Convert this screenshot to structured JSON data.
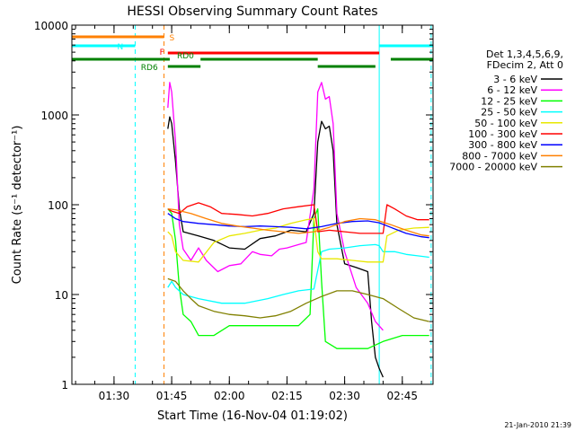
{
  "chart_data": {
    "type": "line",
    "title": "HESSI Observing Summary Count Rates",
    "xlabel": "Start Time (16-Nov-04 01:19:02)",
    "ylabel": "Count Rate (s⁻¹ detector⁻¹)",
    "footer_date": "21-Jan-2010 21:39",
    "y_scale": "log",
    "ylim": [
      1,
      10000
    ],
    "xlim": [
      "01:19:02",
      "02:53:00"
    ],
    "x_ticks": [
      "01:30",
      "01:45",
      "02:00",
      "02:15",
      "02:30",
      "02:45"
    ],
    "y_ticks": [
      "1",
      "10",
      "100",
      "1000",
      "10000"
    ],
    "legend": {
      "placement": "right",
      "header": [
        "Det 1,3,4,5,6,9,",
        "FDecim 2, Att 0"
      ],
      "entries": [
        {
          "label": "3 - 6 keV",
          "color": "#000000"
        },
        {
          "label": "6 - 12 keV",
          "color": "#ff00ff"
        },
        {
          "label": "12 - 25 keV",
          "color": "#00ff00"
        },
        {
          "label": "25 - 50 keV",
          "color": "#00ffff"
        },
        {
          "label": "50 - 100 keV",
          "color": "#e8e800"
        },
        {
          "label": "100 - 300 keV",
          "color": "#ff0000"
        },
        {
          "label": "300 - 800 keV",
          "color": "#0000ff"
        },
        {
          "label": "800 - 7000 keV",
          "color": "#ff8000"
        },
        {
          "label": "7000 - 20000 keV",
          "color": "#808000"
        }
      ]
    },
    "flag_bars": [
      {
        "label": "S",
        "color": "#ff8000",
        "segments": [
          [
            "01:19:02",
            "01:43:00"
          ]
        ]
      },
      {
        "label": "N",
        "color": "#00ffff",
        "segments": [
          [
            "01:19:02",
            "01:35:30"
          ],
          [
            "02:39:00",
            "02:53:00"
          ]
        ]
      },
      {
        "label": "F",
        "color": "#ff0000",
        "segments": [
          [
            "01:44:00",
            "02:39:00"
          ]
        ]
      },
      {
        "label": "RD0",
        "color": "#008000",
        "segments": [
          [
            "01:19:02",
            "01:44:30"
          ],
          [
            "01:52:30",
            "02:23:00"
          ],
          [
            "02:42:00",
            "02:53:00"
          ]
        ]
      },
      {
        "label": "RD6",
        "color": "#008000",
        "segments": [
          [
            "01:44:00",
            "01:52:30"
          ],
          [
            "02:23:00",
            "02:38:00"
          ]
        ]
      }
    ],
    "vertical_markers": [
      {
        "time": "01:19:02",
        "color": "#00ffff",
        "style": "solid"
      },
      {
        "time": "01:35:30",
        "color": "#00ffff",
        "style": "dashed"
      },
      {
        "time": "01:43:00",
        "color": "#ff8000",
        "style": "dashed"
      },
      {
        "time": "02:39:00",
        "color": "#00ffff",
        "style": "solid"
      },
      {
        "time": "02:52:30",
        "color": "#00ffff",
        "style": "dashed"
      }
    ],
    "series": [
      {
        "name": "3 - 6 keV",
        "color": "#000000",
        "points": [
          [
            "01:44:00",
            700
          ],
          [
            "01:44:30",
            950
          ],
          [
            "01:45:00",
            800
          ],
          [
            "01:46:00",
            300
          ],
          [
            "01:47:00",
            90
          ],
          [
            "01:48:00",
            50
          ],
          [
            "01:52:00",
            45
          ],
          [
            "01:56:00",
            40
          ],
          [
            "02:00:00",
            33
          ],
          [
            "02:04:00",
            32
          ],
          [
            "02:08:00",
            42
          ],
          [
            "02:12:00",
            45
          ],
          [
            "02:16:00",
            52
          ],
          [
            "02:20:00",
            50
          ],
          [
            "02:22:00",
            80
          ],
          [
            "02:23:00",
            500
          ],
          [
            "02:24:00",
            850
          ],
          [
            "02:25:00",
            700
          ],
          [
            "02:26:00",
            750
          ],
          [
            "02:27:00",
            400
          ],
          [
            "02:28:00",
            60
          ],
          [
            "02:30:00",
            22
          ],
          [
            "02:33:00",
            20
          ],
          [
            "02:36:00",
            18
          ],
          [
            "02:37:00",
            5
          ],
          [
            "02:38:00",
            2
          ],
          [
            "02:39:00",
            1.5
          ],
          [
            "02:40:00",
            1.2
          ]
        ]
      },
      {
        "name": "6 - 12 keV",
        "color": "#ff00ff",
        "points": [
          [
            "01:44:00",
            1200
          ],
          [
            "01:44:30",
            2300
          ],
          [
            "01:45:00",
            1800
          ],
          [
            "01:46:00",
            500
          ],
          [
            "01:47:00",
            60
          ],
          [
            "01:48:00",
            32
          ],
          [
            "01:50:00",
            24
          ],
          [
            "01:52:00",
            33
          ],
          [
            "01:54:00",
            24
          ],
          [
            "01:57:00",
            18
          ],
          [
            "02:00:00",
            21
          ],
          [
            "02:03:00",
            22
          ],
          [
            "02:06:00",
            30
          ],
          [
            "02:08:00",
            28
          ],
          [
            "02:11:00",
            27
          ],
          [
            "02:13:00",
            32
          ],
          [
            "02:15:00",
            33
          ],
          [
            "02:18:00",
            36
          ],
          [
            "02:20:00",
            38
          ],
          [
            "02:22:00",
            150
          ],
          [
            "02:23:00",
            1800
          ],
          [
            "02:24:00",
            2300
          ],
          [
            "02:25:00",
            1500
          ],
          [
            "02:26:00",
            1600
          ],
          [
            "02:27:00",
            800
          ],
          [
            "02:28:00",
            80
          ],
          [
            "02:30:00",
            30
          ],
          [
            "02:33:00",
            12
          ],
          [
            "02:36:00",
            8
          ],
          [
            "02:38:00",
            5
          ],
          [
            "02:40:00",
            4
          ]
        ]
      },
      {
        "name": "12 - 25 keV",
        "color": "#00ff00",
        "points": [
          [
            "01:44:00",
            90
          ],
          [
            "01:45:00",
            80
          ],
          [
            "01:46:00",
            40
          ],
          [
            "01:47:00",
            12
          ],
          [
            "01:48:00",
            6
          ],
          [
            "01:50:00",
            5
          ],
          [
            "01:52:00",
            3.5
          ],
          [
            "01:56:00",
            3.5
          ],
          [
            "02:00:00",
            4.5
          ],
          [
            "02:06:00",
            4.5
          ],
          [
            "02:12:00",
            4.5
          ],
          [
            "02:18:00",
            4.5
          ],
          [
            "02:21:00",
            6
          ],
          [
            "02:22:00",
            70
          ],
          [
            "02:23:00",
            90
          ],
          [
            "02:24:00",
            14
          ],
          [
            "02:25:00",
            3
          ],
          [
            "02:28:00",
            2.5
          ],
          [
            "02:32:00",
            2.5
          ],
          [
            "02:36:00",
            2.5
          ],
          [
            "02:40:00",
            3
          ],
          [
            "02:45:00",
            3.5
          ],
          [
            "02:52:00",
            3.5
          ]
        ]
      },
      {
        "name": "25 - 50 keV",
        "color": "#00ffff",
        "points": [
          [
            "01:44:00",
            12
          ],
          [
            "01:45:00",
            14
          ],
          [
            "01:46:00",
            12
          ],
          [
            "01:48:00",
            10
          ],
          [
            "01:52:00",
            9
          ],
          [
            "01:58:00",
            8
          ],
          [
            "02:04:00",
            8
          ],
          [
            "02:10:00",
            9
          ],
          [
            "02:14:00",
            10
          ],
          [
            "02:18:00",
            11
          ],
          [
            "02:22:00",
            11.5
          ],
          [
            "02:24:00",
            30
          ],
          [
            "02:26:00",
            32
          ],
          [
            "02:30:00",
            33
          ],
          [
            "02:34:00",
            35
          ],
          [
            "02:38:00",
            36
          ],
          [
            "02:39:00",
            35
          ],
          [
            "02:40:00",
            30
          ],
          [
            "02:43:00",
            30
          ],
          [
            "02:46:00",
            28
          ],
          [
            "02:49:00",
            27
          ],
          [
            "02:52:00",
            26
          ]
        ]
      },
      {
        "name": "50 - 100 keV",
        "color": "#e8e800",
        "points": [
          [
            "01:44:00",
            50
          ],
          [
            "01:45:00",
            45
          ],
          [
            "01:46:00",
            30
          ],
          [
            "01:48:00",
            24
          ],
          [
            "01:52:00",
            23
          ],
          [
            "01:56:00",
            38
          ],
          [
            "02:00:00",
            45
          ],
          [
            "02:04:00",
            48
          ],
          [
            "02:08:00",
            52
          ],
          [
            "02:12:00",
            55
          ],
          [
            "02:16:00",
            62
          ],
          [
            "02:20:00",
            68
          ],
          [
            "02:22:00",
            70
          ],
          [
            "02:23:00",
            30
          ],
          [
            "02:24:00",
            25
          ],
          [
            "02:28:00",
            25
          ],
          [
            "02:32:00",
            24
          ],
          [
            "02:36:00",
            23
          ],
          [
            "02:40:00",
            23
          ],
          [
            "02:41:00",
            45
          ],
          [
            "02:44:00",
            52
          ],
          [
            "02:48:00",
            55
          ],
          [
            "02:52:00",
            56
          ]
        ]
      },
      {
        "name": "100 - 300 keV",
        "color": "#ff0000",
        "points": [
          [
            "01:44:00",
            90
          ],
          [
            "01:45:00",
            85
          ],
          [
            "01:47:00",
            80
          ],
          [
            "01:49:00",
            95
          ],
          [
            "01:52:00",
            105
          ],
          [
            "01:55:00",
            95
          ],
          [
            "01:58:00",
            80
          ],
          [
            "02:02:00",
            78
          ],
          [
            "02:06:00",
            75
          ],
          [
            "02:10:00",
            80
          ],
          [
            "02:14:00",
            90
          ],
          [
            "02:18:00",
            95
          ],
          [
            "02:22:00",
            100
          ],
          [
            "02:23:00",
            50
          ],
          [
            "02:26:00",
            52
          ],
          [
            "02:30:00",
            50
          ],
          [
            "02:34:00",
            48
          ],
          [
            "02:38:00",
            48
          ],
          [
            "02:40:00",
            48
          ],
          [
            "02:41:00",
            100
          ],
          [
            "02:43:00",
            90
          ],
          [
            "02:46:00",
            75
          ],
          [
            "02:49:00",
            68
          ],
          [
            "02:52:00",
            68
          ]
        ]
      },
      {
        "name": "300 - 800 keV",
        "color": "#0000ff",
        "points": [
          [
            "01:44:00",
            80
          ],
          [
            "01:46:00",
            70
          ],
          [
            "01:48:00",
            65
          ],
          [
            "01:52:00",
            62
          ],
          [
            "01:56:00",
            60
          ],
          [
            "02:00:00",
            58
          ],
          [
            "02:04:00",
            57
          ],
          [
            "02:08:00",
            58
          ],
          [
            "02:12:00",
            57
          ],
          [
            "02:16:00",
            56
          ],
          [
            "02:20:00",
            54
          ],
          [
            "02:24:00",
            57
          ],
          [
            "02:28:00",
            62
          ],
          [
            "02:32:00",
            65
          ],
          [
            "02:36:00",
            66
          ],
          [
            "02:39:00",
            63
          ],
          [
            "02:42:00",
            56
          ],
          [
            "02:46:00",
            48
          ],
          [
            "02:50:00",
            44
          ],
          [
            "02:52:00",
            43
          ]
        ]
      },
      {
        "name": "800 - 7000 keV",
        "color": "#ff8000",
        "points": [
          [
            "01:44:00",
            90
          ],
          [
            "01:46:00",
            88
          ],
          [
            "01:50:00",
            80
          ],
          [
            "01:54:00",
            70
          ],
          [
            "01:58:00",
            62
          ],
          [
            "02:02:00",
            58
          ],
          [
            "02:06:00",
            55
          ],
          [
            "02:10:00",
            52
          ],
          [
            "02:14:00",
            50
          ],
          [
            "02:18:00",
            48
          ],
          [
            "02:22:00",
            50
          ],
          [
            "02:26:00",
            56
          ],
          [
            "02:30:00",
            65
          ],
          [
            "02:34:00",
            70
          ],
          [
            "02:38:00",
            68
          ],
          [
            "02:42:00",
            60
          ],
          [
            "02:46:00",
            52
          ],
          [
            "02:50:00",
            46
          ],
          [
            "02:52:00",
            45
          ]
        ]
      },
      {
        "name": "7000 - 20000 keV",
        "color": "#808000",
        "points": [
          [
            "01:44:00",
            15
          ],
          [
            "01:46:00",
            14
          ],
          [
            "01:48:00",
            11
          ],
          [
            "01:50:00",
            9
          ],
          [
            "01:52:00",
            7.5
          ],
          [
            "01:56:00",
            6.5
          ],
          [
            "02:00:00",
            6
          ],
          [
            "02:04:00",
            5.8
          ],
          [
            "02:08:00",
            5.5
          ],
          [
            "02:12:00",
            5.8
          ],
          [
            "02:16:00",
            6.5
          ],
          [
            "02:20:00",
            8
          ],
          [
            "02:24:00",
            9.5
          ],
          [
            "02:28:00",
            11
          ],
          [
            "02:32:00",
            11
          ],
          [
            "02:36:00",
            10
          ],
          [
            "02:40:00",
            9
          ],
          [
            "02:44:00",
            7
          ],
          [
            "02:48:00",
            5.5
          ],
          [
            "02:52:00",
            5
          ]
        ]
      }
    ]
  }
}
